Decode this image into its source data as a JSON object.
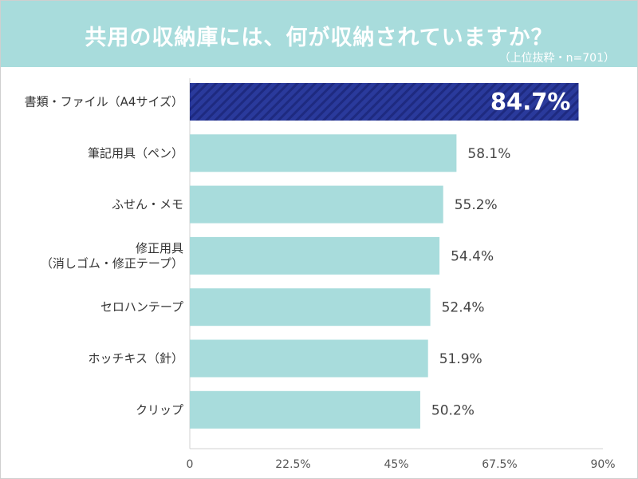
{
  "header": {
    "title": "共用の収納庫には、何が収納されていますか？",
    "subtitle": "（上位抜粋・n=701）"
  },
  "colors": {
    "header_bg": "#a8dcdc",
    "bar": "#a8dcdc",
    "highlight_bar": "#2a3a9c",
    "highlight_stripe": "#1e2a80",
    "axis": "#d0d0d0"
  },
  "chart_data": {
    "type": "bar",
    "orientation": "horizontal",
    "title": "共用の収納庫には、何が収納されていますか？",
    "subtitle": "（上位抜粋・n=701）",
    "categories": [
      [
        "書類・ファイル（A4サイズ）"
      ],
      [
        "筆記用具（ペン）"
      ],
      [
        "ふせん・メモ"
      ],
      [
        "修正用具",
        "（消しゴム・修正テープ）"
      ],
      [
        "セロハンテープ"
      ],
      [
        "ホッチキス（針）"
      ],
      [
        "クリップ"
      ]
    ],
    "values": [
      84.7,
      58.1,
      55.2,
      54.4,
      52.4,
      51.9,
      50.2
    ],
    "value_labels": [
      "84.7%",
      "58.1%",
      "55.2%",
      "54.4%",
      "52.4%",
      "51.9%",
      "50.2%"
    ],
    "highlight_index": 0,
    "xlim": [
      0,
      90
    ],
    "xticks": [
      0,
      22.5,
      45,
      67.5,
      90
    ],
    "xtick_labels": [
      "0",
      "22.5%",
      "45%",
      "67.5%",
      "90%"
    ],
    "grid": false
  }
}
